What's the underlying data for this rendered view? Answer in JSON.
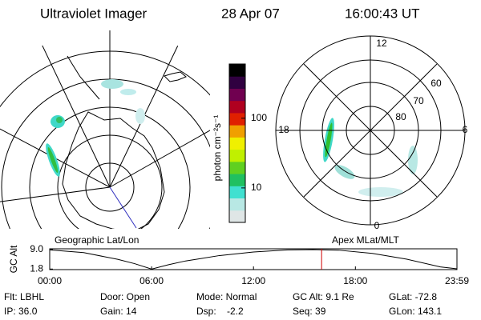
{
  "header": {
    "title": "Ultraviolet Imager",
    "date": "28 Apr 07",
    "time": "16:00:43 UT"
  },
  "map": {
    "title": "Geographic Lat/Lon"
  },
  "apex_plot": {
    "title": "Apex MLat/MLT",
    "mlt_labels": [
      "12",
      "18",
      "6",
      "0"
    ],
    "mlat_labels": [
      "60",
      "70",
      "80"
    ]
  },
  "chart_data": [
    {
      "type": "line",
      "title": "GC Alt",
      "x": [
        0,
        2,
        4,
        5,
        6,
        7,
        8,
        10,
        12,
        14,
        15.5,
        17,
        19,
        21,
        23,
        23.98
      ],
      "values": [
        8.9,
        7.9,
        5.4,
        3.8,
        1.8,
        3.4,
        4.8,
        6.8,
        8.1,
        8.9,
        9.0,
        8.8,
        7.6,
        5.5,
        2.6,
        1.9
      ],
      "color": "#000000",
      "xlim": [
        0,
        23.98
      ],
      "ylim": [
        1.6,
        9.3
      ],
      "xticks": [
        {
          "value": 0,
          "label": "00:00"
        },
        {
          "value": 6,
          "label": "06:00"
        },
        {
          "value": 12,
          "label": "12:00"
        },
        {
          "value": 18,
          "label": "18:00"
        },
        {
          "value": 23.98,
          "label": "23:59"
        }
      ],
      "yticks": [
        {
          "value": 9.0,
          "label": "9.0"
        },
        {
          "value": 1.8,
          "label": "1.8"
        }
      ],
      "marker_x": 16.01,
      "marker_color": "#d00000"
    },
    {
      "type": "colorbar",
      "title": "photon cm⁻²s⁻¹",
      "log": true,
      "ylim": [
        3.2,
        600
      ],
      "yticks": [
        10,
        100
      ],
      "colors": [
        "#dfe6e6",
        "#b8e8e4",
        "#40e0d0",
        "#20c060",
        "#60d020",
        "#c0f000",
        "#f0f000",
        "#f0a000",
        "#e02000",
        "#b00020",
        "#700050",
        "#300040",
        "#000000"
      ]
    }
  ],
  "footer": {
    "rows": [
      [
        "Flt: LBHL",
        "Door: Open",
        "Mode: Normal",
        "GC Alt: 9.1 Re",
        "GLat: -72.8"
      ],
      [
        "IP: 36.0",
        "Gain: 14",
        "Dsp:    -2.2",
        "Seq: 39",
        "GLon: 143.1"
      ]
    ]
  }
}
